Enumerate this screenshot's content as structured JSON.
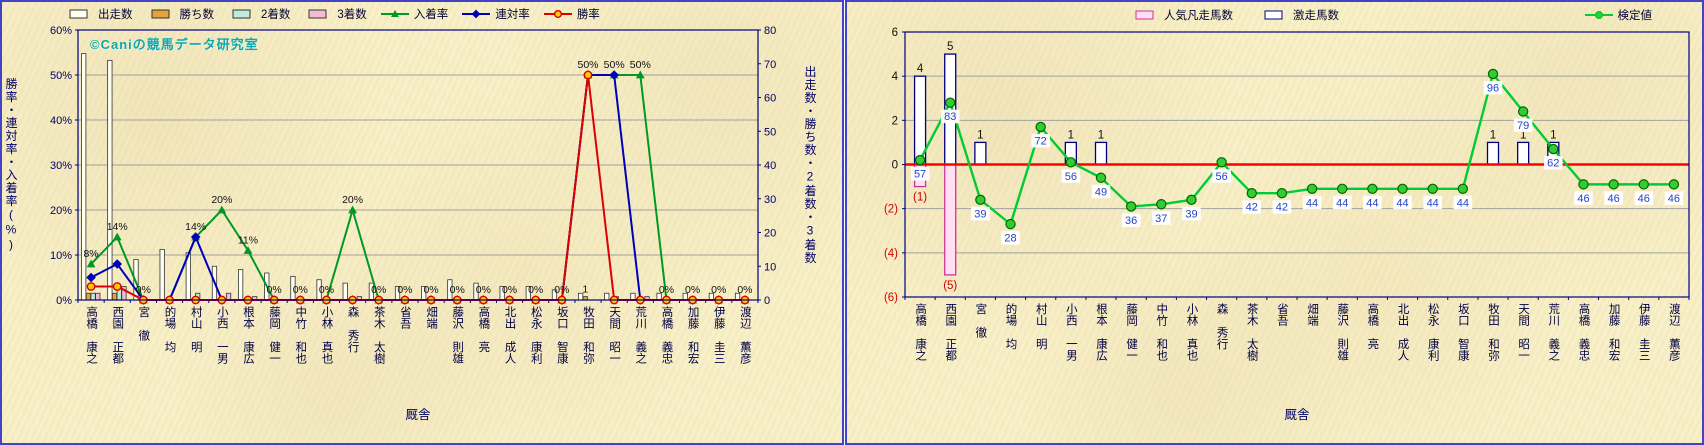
{
  "watermark": "©Caniの競馬データ研究室",
  "left_chart": {
    "y_left_title": "勝率・連対率・入着率(%)",
    "y_right_title": "出走数・勝ち数・2着数・3着数",
    "x_title": "厩舎",
    "legend": [
      {
        "label": "出走数",
        "swatch": "bar",
        "color": "#FFFFF2",
        "border": "#333333"
      },
      {
        "label": "勝ち数",
        "swatch": "bar",
        "color": "#E6A23C",
        "border": "#333333"
      },
      {
        "label": "2着数",
        "swatch": "bar",
        "color": "#BDEBDD",
        "border": "#333333"
      },
      {
        "label": "3着数",
        "swatch": "bar",
        "color": "#F5BBD5",
        "border": "#333333"
      },
      {
        "label": "入着率",
        "swatch": "line",
        "marker": "triangle",
        "color": "#009926"
      },
      {
        "label": "連対率",
        "swatch": "line",
        "marker": "diamond",
        "color": "#0000BB"
      },
      {
        "label": "勝率",
        "swatch": "line",
        "marker": "circle",
        "color": "#DD0000",
        "marker_fill": "#FFCC00"
      }
    ]
  },
  "right_chart": {
    "x_title": "厩舎",
    "legend": [
      {
        "label": "人気凡走馬数",
        "swatch": "bar",
        "color": "#FFDFF1",
        "border": "#CC3399"
      },
      {
        "label": "激走馬数",
        "swatch": "bar",
        "color": "#FFFFFF",
        "border": "#000080"
      }
    ],
    "legend_line": {
      "label": "検定値",
      "swatch": "line",
      "marker": "circle",
      "color": "#00CC33",
      "marker_fill": "#33CC33"
    },
    "y_ticks": [
      "6",
      "4",
      "2",
      "0",
      "(2)",
      "(4)",
      "(6)"
    ]
  },
  "chart_data": [
    {
      "type": "bar",
      "title": "",
      "xlabel": "厩舎",
      "ylabel_left": "勝率・連対率・入着率(%)",
      "ylabel_right": "出走数・勝ち数・2着数・3着数",
      "ylim_left": [
        0,
        60
      ],
      "ylim_right": [
        0,
        80
      ],
      "y_left": {
        "max": 60,
        "step": 10,
        "suffix": "%"
      },
      "y_right": {
        "max": 80,
        "step": 10
      },
      "categories": [
        "高橋 康之",
        "西園 正都",
        "宮 徹",
        "的場 均",
        "村山 明",
        "小西 一男",
        "根本 康広",
        "藤岡 健一",
        "中竹 和也",
        "小林 真也",
        "森 秀行",
        "茶木 太樹",
        "省吾",
        "畑端",
        "藤沢 則雄",
        "高橋 亮",
        "北出 成人",
        "松永 康利",
        "坂口 智康",
        "牧田 和弥",
        "天間 昭一",
        "荒川 義之",
        "高橋 義忠",
        "加藤 和宏",
        "伊藤 圭三",
        "渡辺 薫彦"
      ],
      "series": [
        {
          "name": "出走数",
          "kind": "bar",
          "axis": "right",
          "color": "#FFFFF2",
          "border": "#333333",
          "values": [
            73,
            71,
            12,
            15,
            14,
            10,
            9,
            8,
            7,
            6,
            5,
            5,
            4,
            4,
            6,
            5,
            4,
            4,
            3,
            2,
            2,
            2,
            2,
            2,
            2,
            2
          ]
        },
        {
          "name": "勝ち数",
          "kind": "bar",
          "axis": "right",
          "color": "#E6A23C",
          "border": "#333333",
          "values": [
            2,
            2,
            0,
            0,
            0,
            0,
            0,
            0,
            0,
            0,
            0,
            0,
            0,
            0,
            0,
            0,
            0,
            0,
            0,
            1,
            0,
            0,
            0,
            0,
            0,
            0
          ]
        },
        {
          "name": "2着数",
          "kind": "bar",
          "axis": "right",
          "color": "#BDEBDD",
          "border": "#333333",
          "values": [
            2,
            4,
            0,
            0,
            2,
            0,
            0,
            0,
            0,
            0,
            0,
            0,
            0,
            0,
            0,
            0,
            0,
            0,
            0,
            0,
            1,
            0,
            0,
            0,
            0,
            0
          ]
        },
        {
          "name": "3着数",
          "kind": "bar",
          "axis": "right",
          "color": "#F5BBD5",
          "border": "#333333",
          "values": [
            2,
            4,
            0,
            0,
            0,
            2,
            1,
            0,
            0,
            0,
            1,
            0,
            0,
            0,
            0,
            0,
            0,
            0,
            0,
            0,
            0,
            1,
            0,
            0,
            0,
            0
          ]
        },
        {
          "name": "入着率",
          "kind": "line",
          "axis": "left",
          "marker": "triangle",
          "color": "#009926",
          "values": [
            8,
            14,
            0,
            0,
            14,
            20,
            11,
            0,
            0,
            0,
            20,
            0,
            0,
            0,
            0,
            0,
            0,
            0,
            0,
            50,
            50,
            50,
            0,
            0,
            0,
            0
          ]
        },
        {
          "name": "連対率",
          "kind": "line",
          "axis": "left",
          "marker": "diamond",
          "color": "#0000BB",
          "values": [
            5,
            8,
            0,
            0,
            14,
            0,
            0,
            0,
            0,
            0,
            0,
            0,
            0,
            0,
            0,
            0,
            0,
            0,
            0,
            50,
            50,
            0,
            0,
            0,
            0,
            0
          ]
        },
        {
          "name": "勝率",
          "kind": "line",
          "axis": "left",
          "marker": "circle",
          "color": "#DD0000",
          "marker_fill": "#FFCC00",
          "values": [
            3,
            3,
            0,
            0,
            0,
            0,
            0,
            0,
            0,
            0,
            0,
            0,
            0,
            0,
            0,
            0,
            0,
            0,
            0,
            50,
            0,
            0,
            0,
            0,
            0,
            0
          ]
        }
      ],
      "point_labels": [
        {
          "i": 0,
          "t": "8%"
        },
        {
          "i": 1,
          "t": "14%"
        },
        {
          "i": 2,
          "t": "0%"
        },
        {
          "i": 4,
          "t": "14%"
        },
        {
          "i": 5,
          "t": "20%"
        },
        {
          "i": 6,
          "t": "11%"
        },
        {
          "i": 7,
          "t": "0%"
        },
        {
          "i": 8,
          "t": "0%"
        },
        {
          "i": 9,
          "t": "0%"
        },
        {
          "i": 10,
          "t": "20%"
        },
        {
          "i": 11,
          "t": "0%"
        },
        {
          "i": 12,
          "t": "0%"
        },
        {
          "i": 13,
          "t": "0%"
        },
        {
          "i": 14,
          "t": "0%"
        },
        {
          "i": 15,
          "t": "0%"
        },
        {
          "i": 16,
          "t": "0%"
        },
        {
          "i": 17,
          "t": "0%"
        },
        {
          "i": 18,
          "t": "0%"
        },
        {
          "i": 19,
          "t": "50%"
        },
        {
          "i": 20,
          "t": "50%"
        },
        {
          "i": 21,
          "t": "50%"
        },
        {
          "i": 22,
          "t": "0%"
        },
        {
          "i": 23,
          "t": "0%"
        },
        {
          "i": 24,
          "t": "0%"
        },
        {
          "i": 25,
          "t": "0%"
        }
      ],
      "bar_labels": [
        {
          "i": 19,
          "series": 1,
          "t": "1"
        }
      ]
    },
    {
      "type": "bar",
      "title": "",
      "xlabel": "厩舎",
      "ylim": [
        -6,
        6
      ],
      "zero_line_color": "#FF0000",
      "categories": [
        "高橋 康之",
        "西園 正都",
        "宮 徹",
        "的場 均",
        "村山 明",
        "小西 一男",
        "根本 康広",
        "藤岡 健一",
        "中竹 和也",
        "小林 真也",
        "森 秀行",
        "茶木 太樹",
        "省吾",
        "畑端",
        "藤沢 則雄",
        "高橋 亮",
        "北出 成人",
        "松永 康利",
        "坂口 智康",
        "牧田 和弥",
        "天間 昭一",
        "荒川 義之",
        "高橋 義忠",
        "加藤 和宏",
        "伊藤 圭三",
        "渡辺 薫彦"
      ],
      "series": [
        {
          "name": "人気凡走馬数",
          "kind": "bar",
          "direction": "down",
          "color": "#FFDFF1",
          "border": "#CC3399",
          "label_color": "#CC0000",
          "label_format": "paren",
          "values": [
            1,
            5,
            0,
            0,
            0,
            0,
            0,
            0,
            0,
            0,
            0,
            0,
            0,
            0,
            0,
            0,
            0,
            0,
            0,
            0,
            0,
            0,
            0,
            0,
            0,
            0
          ]
        },
        {
          "name": "激走馬数",
          "kind": "bar",
          "direction": "up",
          "color": "#FFFFFF",
          "border": "#000080",
          "label_color": "#111111",
          "label_format": "plain",
          "values": [
            4,
            5,
            1,
            0,
            0,
            1,
            1,
            0,
            0,
            0,
            0,
            0,
            0,
            0,
            0,
            0,
            0,
            0,
            0,
            1,
            1,
            1,
            0,
            0,
            0,
            0
          ]
        },
        {
          "name": "検定値",
          "kind": "line",
          "marker": "circle",
          "color": "#00CC33",
          "marker_fill": "#33CC33",
          "marker_stroke": "#006600",
          "label_color": "#2244CC",
          "values": [
            0.2,
            2.8,
            -1.6,
            -2.7,
            1.7,
            0.1,
            -0.6,
            -1.9,
            -1.8,
            -1.6,
            0.1,
            -1.3,
            -1.3,
            -1.1,
            -1.1,
            -1.1,
            -1.1,
            -1.1,
            -1.1,
            4.1,
            2.4,
            0.7,
            -0.9,
            -0.9,
            -0.9,
            -0.9
          ],
          "point_labels": [
            "57",
            "83",
            "39",
            "28",
            "72",
            "56",
            "49",
            "36",
            "37",
            "39",
            "56",
            "42",
            "42",
            "44",
            "44",
            "44",
            "44",
            "44",
            "44",
            "96",
            "79",
            "62",
            "46",
            "46",
            "46",
            "46"
          ]
        }
      ]
    }
  ]
}
